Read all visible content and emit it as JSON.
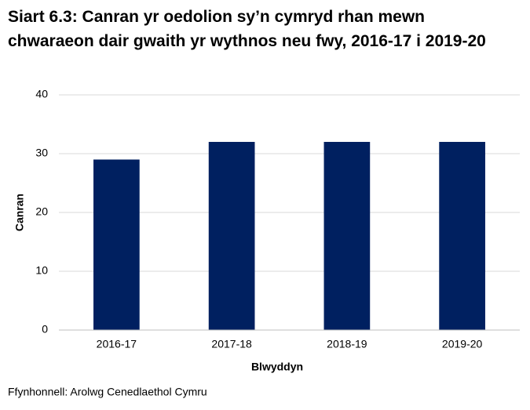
{
  "chart_data": {
    "type": "bar",
    "title": "Siart 6.3: Canran yr oedolion sy’n cymryd rhan mewn chwaraeon dair gwaith yr wythnos neu fwy, 2016-17 i 2019-20",
    "categories": [
      "2016-17",
      "2017-18",
      "2018-19",
      "2019-20"
    ],
    "values": [
      29,
      32,
      32,
      32
    ],
    "color": "#002060",
    "ylim": [
      0,
      40
    ],
    "yticks": [
      0,
      10,
      20,
      30,
      40
    ],
    "grid": true,
    "x_label": "Blwyddyn",
    "y_label": "Canran",
    "source": "Ffynhonnell: Arolwg Cenedlaethol Cymru"
  }
}
